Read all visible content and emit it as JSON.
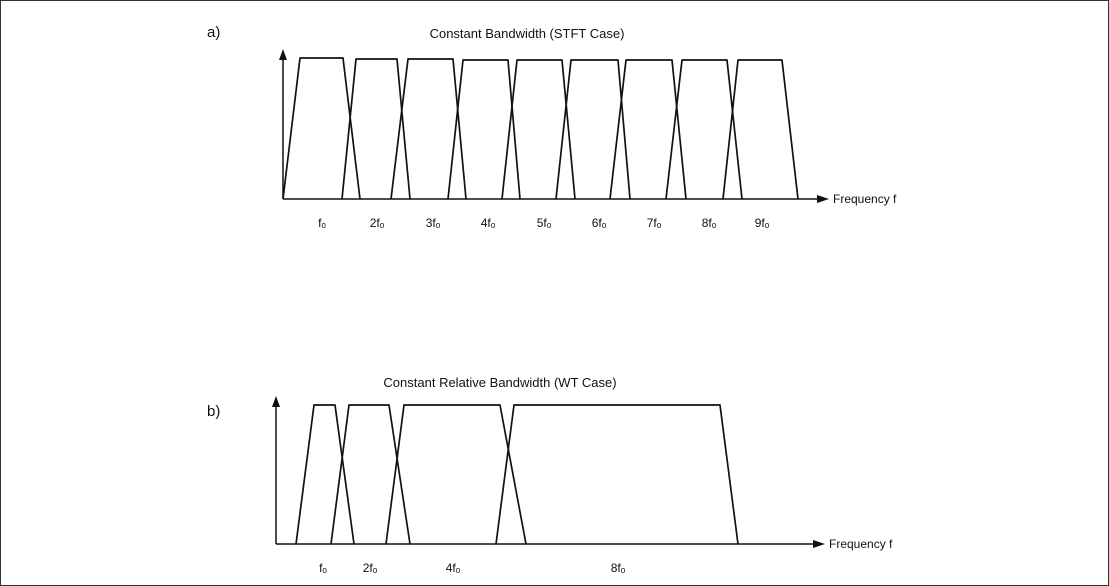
{
  "panel_a": {
    "letter": "a)",
    "title": "Constant Bandwidth (STFT Case)",
    "axis_label": "Frequency f",
    "ticks": [
      "fₒ",
      "2fₒ",
      "3fₒ",
      "4fₒ",
      "5fₒ",
      "6fₒ",
      "7fₒ",
      "8fₒ",
      "9fₒ"
    ],
    "bandwidth": "constant",
    "filter_count": 9
  },
  "panel_b": {
    "letter": "b)",
    "title": "Constant Relative Bandwidth (WT Case)",
    "axis_label": "Frequency f",
    "ticks": [
      "fₒ",
      "2fₒ",
      "4fₒ",
      "8fₒ"
    ],
    "bandwidth": "constant relative",
    "filter_count": 4
  }
}
